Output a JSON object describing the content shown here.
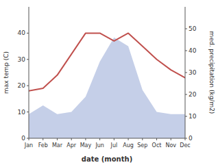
{
  "chart_data": {
    "type": "line",
    "xlabel": "date (month)",
    "ylabel": "max temp (C)",
    "y2label": "med. precipitation (kg/m2)",
    "categories": [
      "Jan",
      "Feb",
      "Mar",
      "Apr",
      "May",
      "Jun",
      "Jul",
      "Aug",
      "Sep",
      "Oct",
      "Nov",
      "Dec"
    ],
    "series": [
      {
        "type": "area",
        "axis": "y2",
        "color": "#c5cfe8",
        "values": [
          11,
          15,
          11,
          12,
          19,
          35,
          46,
          42,
          22,
          12,
          11,
          11
        ]
      },
      {
        "type": "line",
        "color": "#c0504d",
        "values": [
          18,
          19,
          24,
          32,
          40,
          40,
          37,
          40,
          35,
          30,
          26,
          23
        ]
      }
    ],
    "ylim": [
      0,
      50
    ],
    "yticks": [
      0,
      10,
      20,
      30,
      40
    ],
    "y2lim": [
      0,
      60
    ],
    "y2ticks": [
      0,
      10,
      20,
      30,
      40,
      50
    ],
    "grid": false
  }
}
